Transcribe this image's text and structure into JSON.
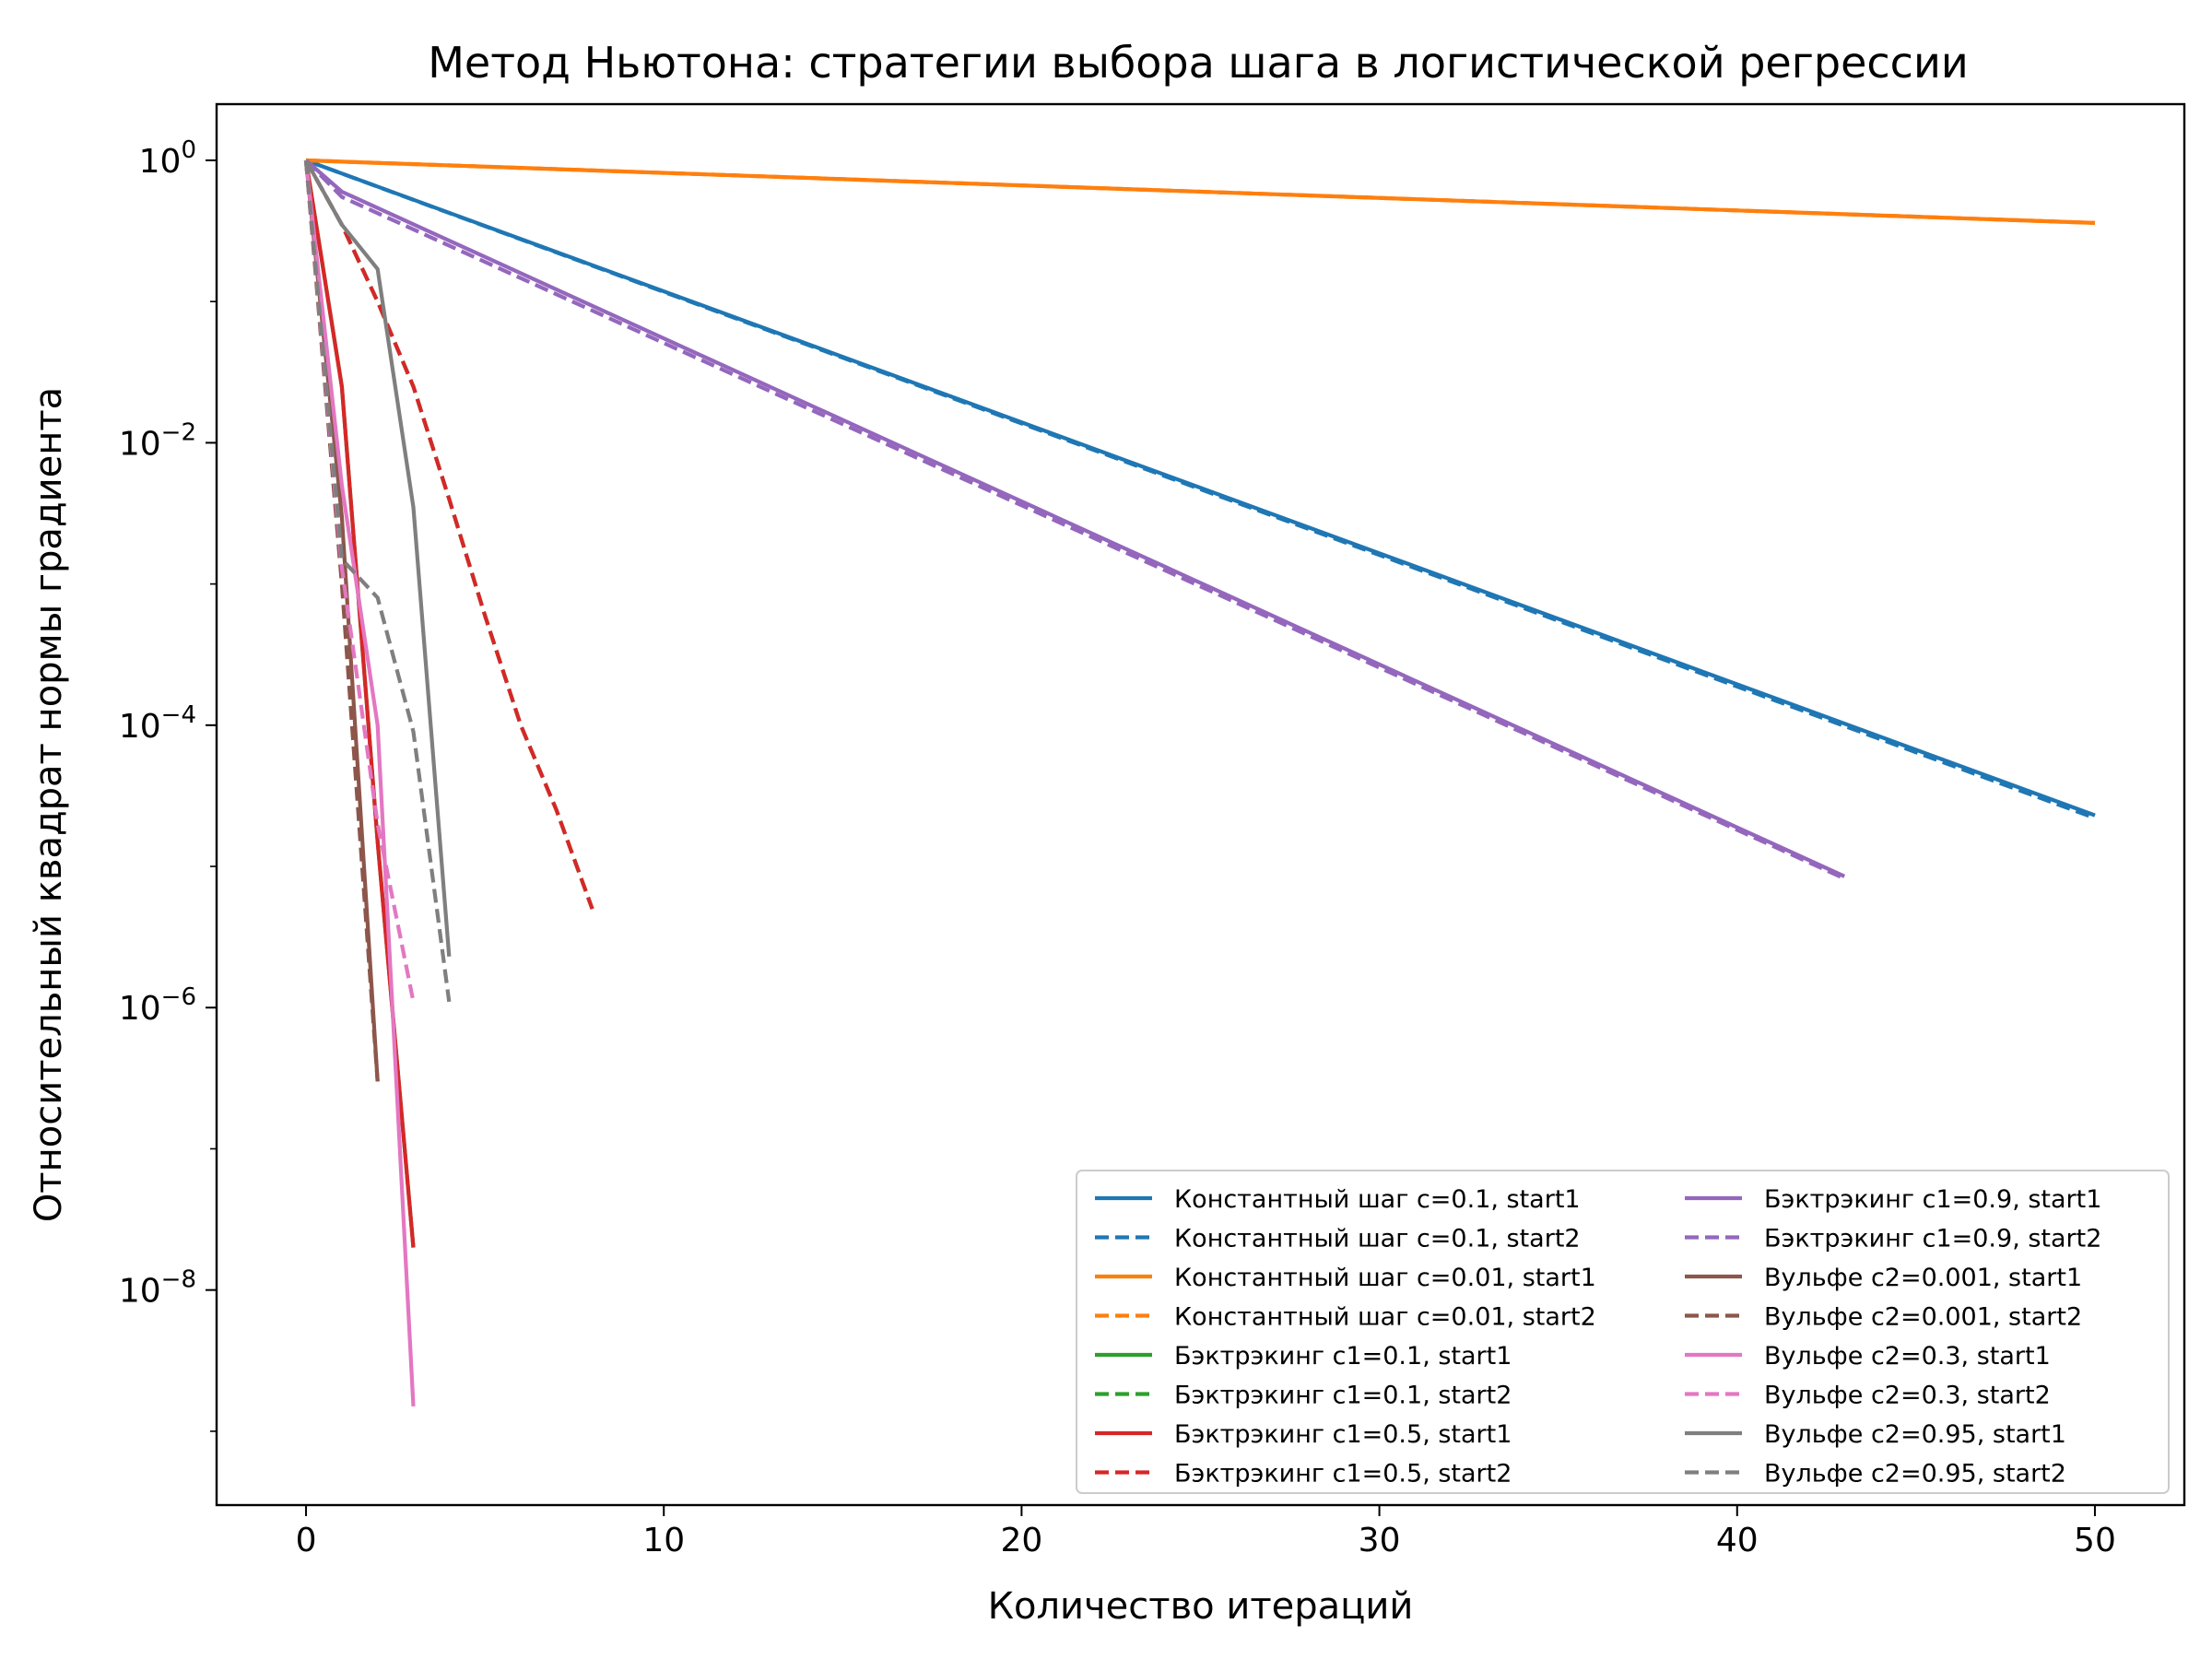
{
  "chart_data": {
    "type": "line",
    "title": "Метод Ньютона: стратегии выбора шага в логистической регрессии",
    "xlabel": "Количество итераций",
    "ylabel": "Относительный квадрат нормы градиента",
    "xlim": [
      -2.5,
      52.5
    ],
    "ylim": [
      3e-10,
      2.5
    ],
    "yscale": "log",
    "xticks": [
      0,
      10,
      20,
      30,
      40,
      50
    ],
    "xtick_labels": [
      "0",
      "10",
      "20",
      "30",
      "40",
      "50"
    ],
    "yticks": [
      1,
      0.01,
      0.0001,
      1e-06,
      1e-08
    ],
    "ytick_labels": [
      {
        "base": "10",
        "exp": "0"
      },
      {
        "base": "10",
        "exp": "−2"
      },
      {
        "base": "10",
        "exp": "−4"
      },
      {
        "base": "10",
        "exp": "−6"
      },
      {
        "base": "10",
        "exp": "−8"
      }
    ],
    "grid": false,
    "legend_position": "lower-right",
    "legend_columns": 2,
    "series": [
      {
        "name": "Константный шаг c=0.1, start1",
        "color": "#1f77b4",
        "dash": "solid",
        "x": [
          0,
          50
        ],
        "y": [
          1,
          2.3e-05
        ]
      },
      {
        "name": "Константный шаг c=0.1, start2",
        "color": "#1f77b4",
        "dash": "dashed",
        "x": [
          0,
          50
        ],
        "y": [
          1,
          2.2e-05
        ]
      },
      {
        "name": "Константный шаг c=0.01, start1",
        "color": "#ff7f0e",
        "dash": "solid",
        "x": [
          0,
          50
        ],
        "y": [
          1,
          0.36
        ]
      },
      {
        "name": "Константный шаг c=0.01, start2",
        "color": "#ff7f0e",
        "dash": "dashed",
        "x": [
          0,
          50
        ],
        "y": [
          1,
          0.36
        ]
      },
      {
        "name": "Бэктрэкинг c1=0.1, start1",
        "color": "#2ca02c",
        "dash": "solid",
        "x": [
          0,
          1,
          2,
          3
        ],
        "y": [
          1,
          0.025,
          1.5e-05,
          2e-08
        ]
      },
      {
        "name": "Бэктрэкинг c1=0.1, start2",
        "color": "#2ca02c",
        "dash": "dashed",
        "x": [
          0,
          1,
          2,
          3,
          4,
          5,
          6,
          7,
          8
        ],
        "y": [
          1,
          0.35,
          0.1,
          0.025,
          0.004,
          0.0006,
          0.0001,
          2.5e-05,
          5e-06
        ]
      },
      {
        "name": "Бэктрэкинг c1=0.5, start1",
        "color": "#d62728",
        "dash": "solid",
        "x": [
          0,
          1,
          2,
          3
        ],
        "y": [
          1,
          0.025,
          1.5e-05,
          2e-08
        ]
      },
      {
        "name": "Бэктрэкинг c1=0.5, start2",
        "color": "#d62728",
        "dash": "dashed",
        "x": [
          0,
          1,
          2,
          3,
          4,
          5,
          6,
          7,
          8
        ],
        "y": [
          1,
          0.35,
          0.1,
          0.025,
          0.004,
          0.0006,
          0.0001,
          2.5e-05,
          5e-06
        ]
      },
      {
        "name": "Бэктрэкинг c1=0.9, start1",
        "color": "#9467bd",
        "dash": "solid",
        "x": [
          0,
          1,
          43
        ],
        "y": [
          1,
          0.6,
          8.5e-06
        ]
      },
      {
        "name": "Бэктрэкинг c1=0.9, start2",
        "color": "#9467bd",
        "dash": "dashed",
        "x": [
          0,
          1,
          43
        ],
        "y": [
          1,
          0.55,
          8.2e-06
        ]
      },
      {
        "name": "Вульфе c2=0.001, start1",
        "color": "#8c564b",
        "dash": "solid",
        "x": [
          0,
          1,
          2
        ],
        "y": [
          1,
          0.003,
          3e-07
        ]
      },
      {
        "name": "Вульфе c2=0.001, start2",
        "color": "#8c564b",
        "dash": "dashed",
        "x": [
          0,
          1,
          2
        ],
        "y": [
          1,
          0.001,
          3e-07
        ]
      },
      {
        "name": "Вульфе c2=0.3, start1",
        "color": "#e377c2",
        "dash": "solid",
        "x": [
          0,
          1,
          2,
          3
        ],
        "y": [
          1,
          0.005,
          0.0001,
          1.5e-09
        ]
      },
      {
        "name": "Вульфе c2=0.3, start2",
        "color": "#e377c2",
        "dash": "dashed",
        "x": [
          0,
          1,
          2,
          3
        ],
        "y": [
          1,
          0.0013,
          2e-05,
          1.1e-06
        ]
      },
      {
        "name": "Вульфе c2=0.95, start1",
        "color": "#7f7f7f",
        "dash": "solid",
        "x": [
          0,
          1,
          2,
          3,
          4
        ],
        "y": [
          1,
          0.35,
          0.17,
          0.0035,
          2.3e-06
        ]
      },
      {
        "name": "Вульфе c2=0.95, start2",
        "color": "#7f7f7f",
        "dash": "dashed",
        "x": [
          0,
          1,
          2,
          3,
          4
        ],
        "y": [
          1,
          0.0015,
          0.0008,
          9e-05,
          1.1e-06
        ]
      }
    ]
  }
}
